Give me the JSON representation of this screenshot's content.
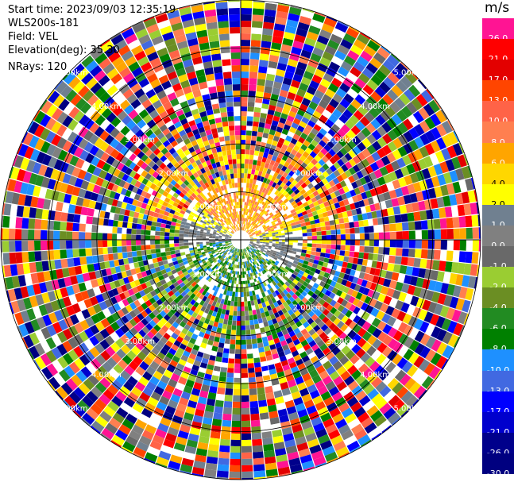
{
  "info": {
    "start_time": "Start time: 2023/09/03 12:35:19",
    "site": "WLS200s-181",
    "field": "Field: VEL",
    "elevation": "Elevation(deg): 35.30",
    "nrays": "NRays: 120"
  },
  "colorbar": {
    "unit": "m/s",
    "labels": [
      "26.0",
      "21.0",
      "17.0",
      "13.0",
      "10.0",
      "8.0",
      "6.0",
      "4.0",
      "2.0",
      "1.0",
      "0.0",
      "-1.0",
      "-2.0",
      "-4.0",
      "-6.0",
      "-8.0",
      "-10.0",
      "-13.0",
      "-17.0",
      "-21.0",
      "-26.0",
      "-30.0"
    ],
    "colors": [
      "#ff1493",
      "#ff0000",
      "#e30000",
      "#ff4500",
      "#ff6347",
      "#ff7f50",
      "#ffa500",
      "#ffd700",
      "#ffff00",
      "#708090",
      "#808080",
      "#696969",
      "#9acd32",
      "#6b8e23",
      "#228b22",
      "#008000",
      "#1e90ff",
      "#4169e1",
      "#0000ff",
      "#0000cd",
      "#00008b",
      "#000080"
    ]
  },
  "chart_data": {
    "type": "heatmap",
    "projection": "polar",
    "field": "VEL",
    "units": "m/s",
    "nrays": 120,
    "range_ring_labels": [
      "1.00km",
      "2.00km",
      "3.00km",
      "4.00km",
      "5.00km"
    ],
    "range_rings_km": [
      1,
      2,
      3,
      4,
      5
    ]
  }
}
